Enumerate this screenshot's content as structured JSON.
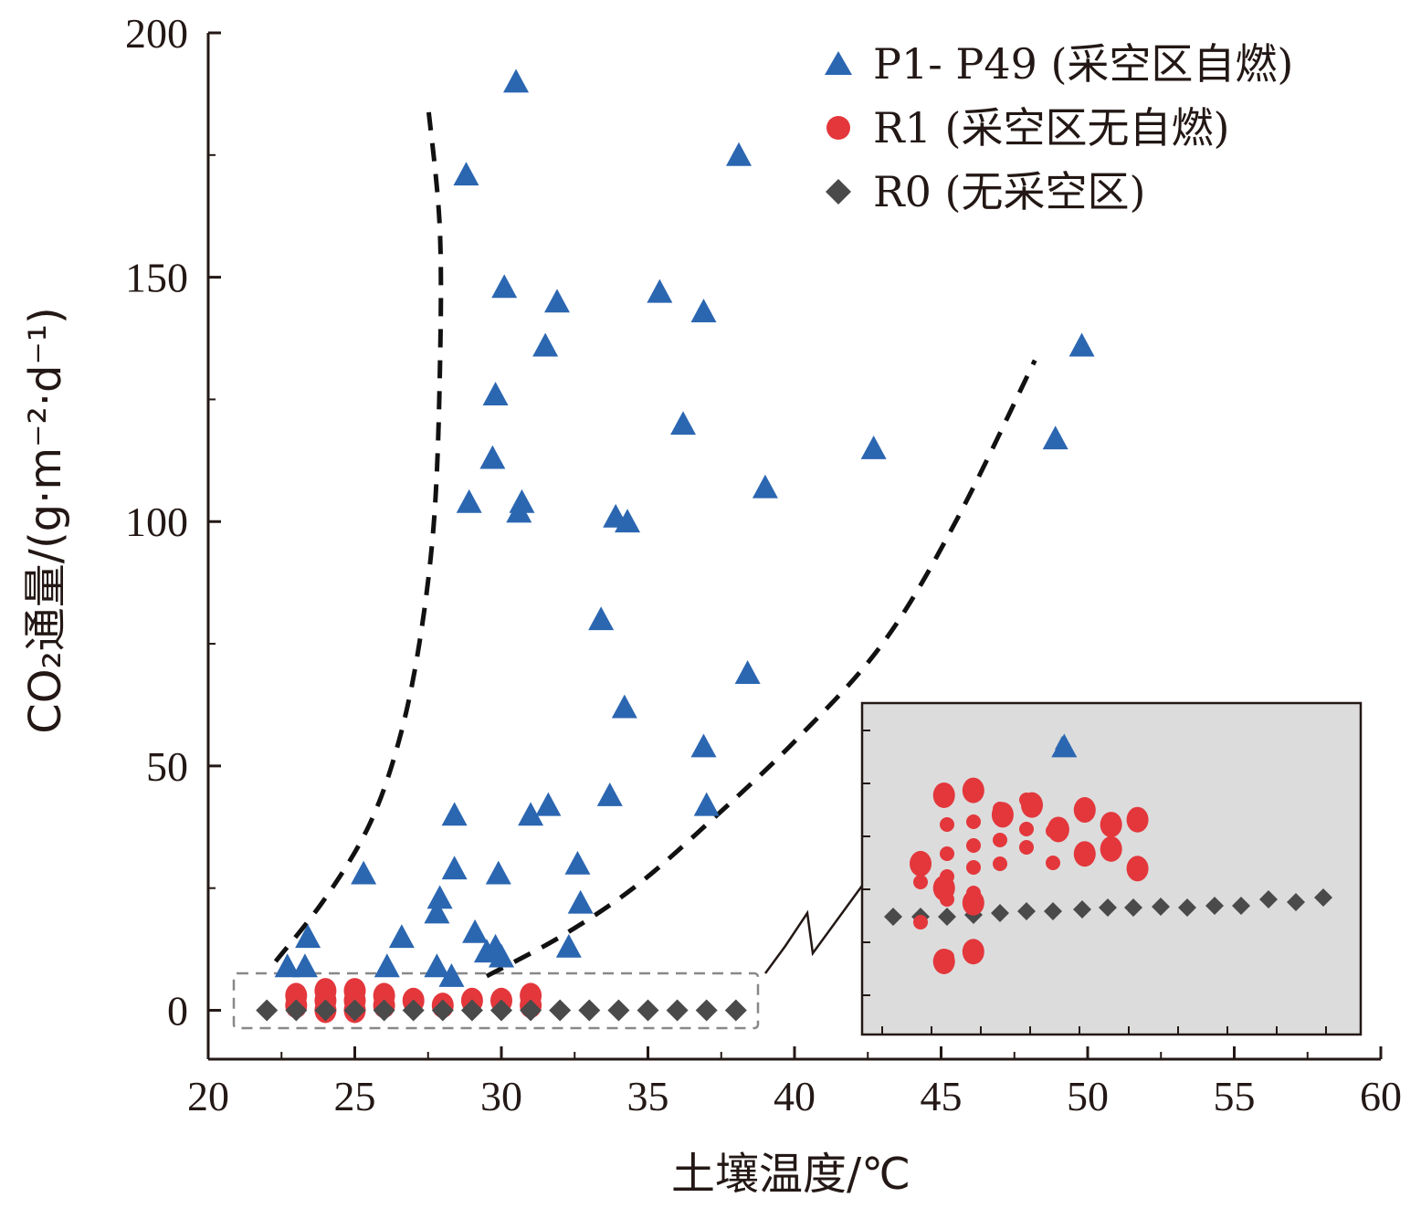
{
  "chart_data": {
    "type": "scatter",
    "xlabel": "土壤温度/℃",
    "ylabel": "CO₂通量/(g·m⁻²·d⁻¹)",
    "xlim": [
      20,
      60
    ],
    "ylim": [
      -10,
      200
    ],
    "x_ticks": [
      "20",
      "25",
      "30",
      "35",
      "40",
      "45",
      "50",
      "55",
      "60"
    ],
    "y_ticks": [
      "0",
      "50",
      "100",
      "150",
      "200"
    ],
    "legend_position": "top-right",
    "colors": {
      "blue": "#2b66b1",
      "red": "#e3373c",
      "dark": "#4a4a4a"
    },
    "series": [
      {
        "name": "P1- P49 (采空区自燃)",
        "marker": "triangle",
        "color": "#2b66b1",
        "points": [
          [
            30.5,
            190
          ],
          [
            28.8,
            171
          ],
          [
            38.1,
            175
          ],
          [
            30.1,
            148
          ],
          [
            31.9,
            145
          ],
          [
            35.4,
            147
          ],
          [
            36.9,
            143
          ],
          [
            31.5,
            136
          ],
          [
            49.8,
            136
          ],
          [
            29.8,
            126
          ],
          [
            36.2,
            120
          ],
          [
            29.7,
            113
          ],
          [
            48.9,
            117
          ],
          [
            42.7,
            115
          ],
          [
            28.9,
            104
          ],
          [
            30.7,
            104
          ],
          [
            30.6,
            102
          ],
          [
            39.0,
            107
          ],
          [
            33.9,
            101
          ],
          [
            34.3,
            100
          ],
          [
            33.4,
            80
          ],
          [
            38.4,
            69
          ],
          [
            34.2,
            62
          ],
          [
            36.9,
            54
          ],
          [
            33.7,
            44
          ],
          [
            37.0,
            42
          ],
          [
            28.4,
            40
          ],
          [
            31.6,
            42
          ],
          [
            31.0,
            40
          ],
          [
            32.6,
            30
          ],
          [
            25.3,
            28
          ],
          [
            29.9,
            28
          ],
          [
            28.4,
            29
          ],
          [
            27.9,
            23
          ],
          [
            27.8,
            20
          ],
          [
            32.7,
            22
          ],
          [
            23.4,
            15
          ],
          [
            26.6,
            15
          ],
          [
            29.1,
            16
          ],
          [
            32.3,
            13
          ],
          [
            29.5,
            12
          ],
          [
            30.0,
            11
          ],
          [
            29.8,
            13
          ],
          [
            22.7,
            9
          ],
          [
            23.3,
            9
          ],
          [
            26.1,
            9
          ],
          [
            27.8,
            9
          ],
          [
            28.3,
            7
          ],
          [
            49.2,
            54
          ]
        ]
      },
      {
        "name": "R1 (采空区无自燃)",
        "marker": "circle",
        "color": "#e3373c",
        "points": [
          [
            23.0,
            1
          ],
          [
            23.0,
            3
          ],
          [
            24.0,
            0
          ],
          [
            24.0,
            2
          ],
          [
            24.0,
            4
          ],
          [
            25.0,
            0
          ],
          [
            25.0,
            2
          ],
          [
            25.0,
            4
          ],
          [
            26.0,
            1
          ],
          [
            26.0,
            3
          ],
          [
            27.0,
            2
          ],
          [
            28.0,
            1
          ],
          [
            29.0,
            2
          ],
          [
            30.0,
            2
          ],
          [
            31.0,
            1
          ],
          [
            31.0,
            3
          ],
          [
            45.1,
            44
          ],
          [
            46.1,
            45
          ],
          [
            47.1,
            40
          ],
          [
            48.1,
            42
          ],
          [
            49.9,
            41
          ],
          [
            50.8,
            38
          ],
          [
            51.7,
            39
          ],
          [
            45.1,
            25
          ],
          [
            46.1,
            22
          ],
          [
            44.3,
            30
          ],
          [
            45.1,
            10
          ],
          [
            46.1,
            12
          ],
          [
            49.0,
            37
          ],
          [
            49.9,
            32
          ],
          [
            50.8,
            33
          ],
          [
            51.7,
            29
          ]
        ]
      },
      {
        "name": "R0 (无采空区)",
        "marker": "diamond",
        "color": "#4a4a4a",
        "points": [
          [
            22.0,
            0
          ],
          [
            23.0,
            0
          ],
          [
            24.0,
            0
          ],
          [
            25.0,
            0
          ],
          [
            26.0,
            0
          ],
          [
            27.0,
            0
          ],
          [
            28.0,
            0
          ],
          [
            29.0,
            0
          ],
          [
            30.0,
            0
          ],
          [
            31.0,
            0
          ],
          [
            32.0,
            0
          ],
          [
            33.0,
            0
          ],
          [
            34.0,
            0
          ],
          [
            35.0,
            0
          ],
          [
            36.0,
            0
          ],
          [
            37.0,
            0
          ],
          [
            38.0,
            0
          ]
        ]
      }
    ],
    "trend_lines": [
      {
        "style": "dashed",
        "points": [
          [
            22.3,
            10
          ],
          [
            24,
            23
          ],
          [
            25.5,
            38
          ],
          [
            26.5,
            55
          ],
          [
            27.2,
            75
          ],
          [
            27.7,
            100
          ],
          [
            27.9,
            130
          ],
          [
            27.9,
            160
          ],
          [
            27.5,
            185
          ]
        ]
      },
      {
        "style": "dashed",
        "points": [
          [
            29.5,
            7
          ],
          [
            32,
            15
          ],
          [
            34.5,
            25
          ],
          [
            37,
            38
          ],
          [
            40,
            55
          ],
          [
            43,
            75
          ],
          [
            45.5,
            100
          ],
          [
            48.2,
            133
          ]
        ]
      }
    ],
    "inset": {
      "description_hidden": true,
      "points_red": [],
      "points_dark": []
    }
  }
}
